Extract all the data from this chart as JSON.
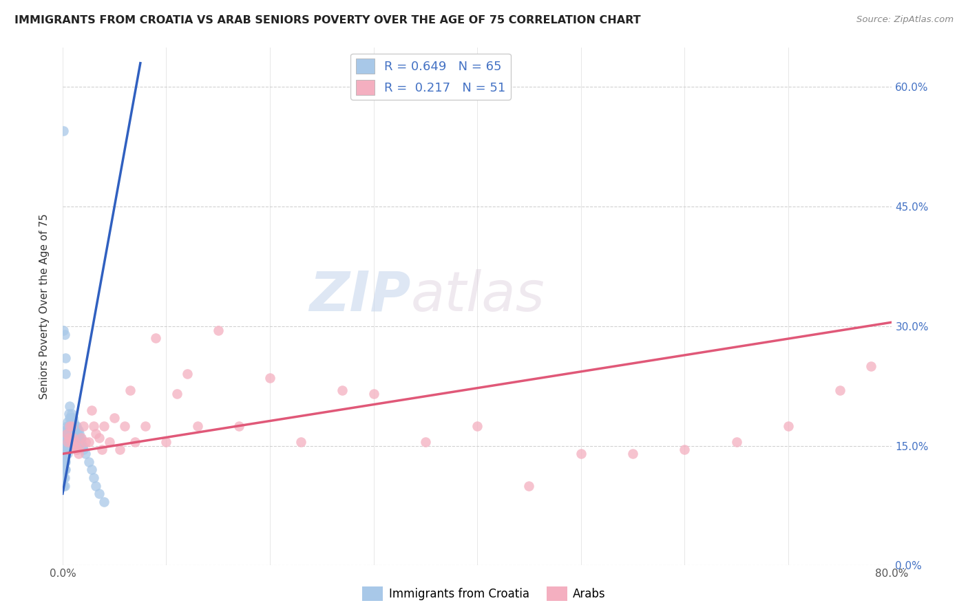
{
  "title": "IMMIGRANTS FROM CROATIA VS ARAB SENIORS POVERTY OVER THE AGE OF 75 CORRELATION CHART",
  "source": "Source: ZipAtlas.com",
  "ylabel": "Seniors Poverty Over the Age of 75",
  "xlim": [
    0.0,
    0.8
  ],
  "ylim": [
    0.0,
    0.65
  ],
  "croatia_color": "#a8c8e8",
  "arab_color": "#f4afc0",
  "croatia_line_color": "#3060c0",
  "arab_line_color": "#e05878",
  "R_croatia": 0.649,
  "N_croatia": 65,
  "R_arab": 0.217,
  "N_arab": 51,
  "legend_label_croatia": "Immigrants from Croatia",
  "legend_label_arab": "Arabs",
  "watermark_zip": "ZIP",
  "watermark_atlas": "atlas",
  "croatia_scatter_x": [
    0.001,
    0.001,
    0.001,
    0.001,
    0.002,
    0.002,
    0.002,
    0.002,
    0.002,
    0.003,
    0.003,
    0.003,
    0.003,
    0.003,
    0.003,
    0.004,
    0.004,
    0.004,
    0.004,
    0.005,
    0.005,
    0.005,
    0.005,
    0.005,
    0.006,
    0.006,
    0.006,
    0.006,
    0.007,
    0.007,
    0.007,
    0.008,
    0.008,
    0.008,
    0.009,
    0.009,
    0.01,
    0.01,
    0.01,
    0.011,
    0.011,
    0.012,
    0.012,
    0.013,
    0.013,
    0.014,
    0.015,
    0.015,
    0.016,
    0.017,
    0.018,
    0.019,
    0.02,
    0.022,
    0.025,
    0.028,
    0.03,
    0.032,
    0.035,
    0.04,
    0.001,
    0.001,
    0.002,
    0.003,
    0.003
  ],
  "croatia_scatter_y": [
    0.13,
    0.12,
    0.11,
    0.1,
    0.14,
    0.13,
    0.12,
    0.11,
    0.1,
    0.17,
    0.16,
    0.15,
    0.14,
    0.13,
    0.12,
    0.175,
    0.165,
    0.155,
    0.145,
    0.18,
    0.17,
    0.16,
    0.15,
    0.14,
    0.19,
    0.175,
    0.165,
    0.155,
    0.2,
    0.185,
    0.17,
    0.185,
    0.175,
    0.165,
    0.19,
    0.175,
    0.185,
    0.17,
    0.16,
    0.18,
    0.17,
    0.175,
    0.165,
    0.175,
    0.165,
    0.17,
    0.17,
    0.16,
    0.165,
    0.16,
    0.155,
    0.15,
    0.145,
    0.14,
    0.13,
    0.12,
    0.11,
    0.1,
    0.09,
    0.08,
    0.295,
    0.545,
    0.29,
    0.26,
    0.24
  ],
  "arab_scatter_x": [
    0.004,
    0.005,
    0.006,
    0.007,
    0.008,
    0.009,
    0.01,
    0.011,
    0.012,
    0.013,
    0.014,
    0.015,
    0.016,
    0.018,
    0.02,
    0.022,
    0.025,
    0.028,
    0.03,
    0.032,
    0.035,
    0.038,
    0.04,
    0.045,
    0.05,
    0.055,
    0.06,
    0.065,
    0.07,
    0.08,
    0.09,
    0.1,
    0.11,
    0.12,
    0.13,
    0.15,
    0.17,
    0.2,
    0.23,
    0.27,
    0.3,
    0.35,
    0.4,
    0.45,
    0.5,
    0.55,
    0.6,
    0.65,
    0.7,
    0.75,
    0.78
  ],
  "arab_scatter_y": [
    0.165,
    0.155,
    0.16,
    0.175,
    0.155,
    0.175,
    0.16,
    0.15,
    0.155,
    0.145,
    0.145,
    0.14,
    0.15,
    0.16,
    0.175,
    0.155,
    0.155,
    0.195,
    0.175,
    0.165,
    0.16,
    0.145,
    0.175,
    0.155,
    0.185,
    0.145,
    0.175,
    0.22,
    0.155,
    0.175,
    0.285,
    0.155,
    0.215,
    0.24,
    0.175,
    0.295,
    0.175,
    0.235,
    0.155,
    0.22,
    0.215,
    0.155,
    0.175,
    0.1,
    0.14,
    0.14,
    0.145,
    0.155,
    0.175,
    0.22,
    0.25
  ],
  "croatia_line_x": [
    0.0,
    0.075
  ],
  "croatia_line_y": [
    0.09,
    0.63
  ],
  "arab_line_x": [
    0.0,
    0.8
  ],
  "arab_line_y": [
    0.14,
    0.305
  ]
}
